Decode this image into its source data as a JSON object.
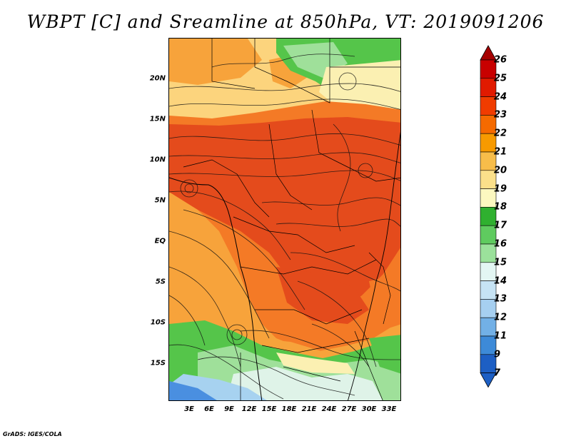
{
  "title": "WBPT [C] and Sreamline at 850hPa, VT: 2019091206",
  "credit": "GrADS: IGES/COLA",
  "lat_labels": [
    "20N",
    "15N",
    "10N",
    "5N",
    "EQ",
    "5S",
    "10S",
    "15S"
  ],
  "lon_labels": [
    "3E",
    "6E",
    "9E",
    "12E",
    "15E",
    "18E",
    "21E",
    "24E",
    "27E",
    "30E",
    "33E"
  ],
  "colorbar": {
    "labels": [
      "26",
      "25",
      "24",
      "23",
      "22",
      "21",
      "20",
      "19",
      "18",
      "17",
      "16",
      "15",
      "14",
      "13",
      "12",
      "11",
      "9",
      "7"
    ],
    "colors": [
      "#a50000",
      "#c80000",
      "#e11a00",
      "#f03c00",
      "#f56a00",
      "#f79a00",
      "#f7bd4a",
      "#fbe08a",
      "#fcf8c0",
      "#2fb02f",
      "#5fcb5f",
      "#9be19b",
      "#e3f6f3",
      "#c6e3f4",
      "#a6cff0",
      "#72b0e6",
      "#3d8ad8",
      "#1d5fc4",
      "#1d5fc4"
    ]
  },
  "map_regions": {
    "colors": {
      "red": "#e44b1c",
      "orange": "#f47a26",
      "amber": "#f7a33b",
      "yellow": "#fcd47d",
      "cream": "#fbf0b2",
      "green": "#55c54a",
      "light_green": "#9fe09a",
      "pale": "#dff3e8",
      "light_blue": "#a7d2f0",
      "blue": "#4a8fe0"
    }
  }
}
